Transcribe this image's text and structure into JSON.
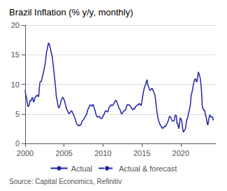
{
  "chart_data": {
    "type": "line",
    "title": "Brazil Inflation (% y/y, monthly)",
    "source": "Source: Capital Economics, Refinitiv",
    "xlim": [
      2000.0,
      2024.5
    ],
    "xticks": [
      2000,
      2005,
      2010,
      2015,
      2020
    ],
    "ylim": [
      0,
      20
    ],
    "yticks": [
      0,
      5,
      10,
      15,
      20
    ],
    "grid": true,
    "legend": "bottom",
    "x": [
      2000.0,
      2000.08,
      2000.17,
      2000.25,
      2000.33,
      2000.42,
      2000.5,
      2000.58,
      2000.67,
      2000.75,
      2000.83,
      2000.92,
      2001.0,
      2001.08,
      2001.17,
      2001.25,
      2001.33,
      2001.42,
      2001.5,
      2001.58,
      2001.67,
      2001.75,
      2001.83,
      2001.92,
      2002.0,
      2002.08,
      2002.17,
      2002.25,
      2002.33,
      2002.42,
      2002.5,
      2002.58,
      2002.67,
      2002.75,
      2002.83,
      2002.92,
      2003.0,
      2003.08,
      2003.17,
      2003.25,
      2003.33,
      2003.42,
      2003.5,
      2003.58,
      2003.67,
      2003.75,
      2003.83,
      2003.92,
      2004.0,
      2004.08,
      2004.17,
      2004.25,
      2004.33,
      2004.42,
      2004.5,
      2004.58,
      2004.67,
      2004.75,
      2004.83,
      2004.92,
      2005.0,
      2005.08,
      2005.17,
      2005.25,
      2005.33,
      2005.42,
      2005.5,
      2005.58,
      2005.67,
      2005.75,
      2005.83,
      2005.92,
      2006.0,
      2006.08,
      2006.17,
      2006.25,
      2006.33,
      2006.42,
      2006.5,
      2006.58,
      2006.67,
      2006.75,
      2006.83,
      2006.92,
      2007.0,
      2007.08,
      2007.17,
      2007.25,
      2007.33,
      2007.42,
      2007.5,
      2007.58,
      2007.67,
      2007.75,
      2007.83,
      2007.92,
      2008.0,
      2008.08,
      2008.17,
      2008.25,
      2008.33,
      2008.42,
      2008.5,
      2008.58,
      2008.67,
      2008.75,
      2008.83,
      2008.92,
      2009.0,
      2009.08,
      2009.17,
      2009.25,
      2009.33,
      2009.42,
      2009.5,
      2009.58,
      2009.67,
      2009.75,
      2009.83,
      2009.92,
      2010.0,
      2010.08,
      2010.17,
      2010.25,
      2010.33,
      2010.42,
      2010.5,
      2010.58,
      2010.67,
      2010.75,
      2010.83,
      2010.92,
      2011.0,
      2011.08,
      2011.17,
      2011.25,
      2011.33,
      2011.42,
      2011.5,
      2011.58,
      2011.67,
      2011.75,
      2011.83,
      2011.92,
      2012.0,
      2012.08,
      2012.17,
      2012.25,
      2012.33,
      2012.42,
      2012.5,
      2012.58,
      2012.67,
      2012.75,
      2012.83,
      2012.92,
      2013.0,
      2013.08,
      2013.17,
      2013.25,
      2013.33,
      2013.42,
      2013.5,
      2013.58,
      2013.67,
      2013.75,
      2013.83,
      2013.92,
      2014.0,
      2014.08,
      2014.17,
      2014.25,
      2014.33,
      2014.42,
      2014.5,
      2014.58,
      2014.67,
      2014.75,
      2014.83,
      2014.92,
      2015.0,
      2015.08,
      2015.17,
      2015.25,
      2015.33,
      2015.42,
      2015.5,
      2015.58,
      2015.67,
      2015.75,
      2015.83,
      2015.92,
      2016.0,
      2016.08,
      2016.17,
      2016.25,
      2016.33,
      2016.42,
      2016.5,
      2016.58,
      2016.67,
      2016.75,
      2016.83,
      2016.92,
      2017.0,
      2017.08,
      2017.17,
      2017.25,
      2017.33,
      2017.42,
      2017.5,
      2017.58,
      2017.67,
      2017.75,
      2017.83,
      2017.92,
      2018.0,
      2018.08,
      2018.17,
      2018.25,
      2018.33,
      2018.42,
      2018.5,
      2018.58,
      2018.67,
      2018.75,
      2018.83,
      2018.92,
      2019.0,
      2019.08,
      2019.17,
      2019.25,
      2019.33,
      2019.42,
      2019.5,
      2019.58,
      2019.67,
      2019.75,
      2019.83,
      2019.92,
      2020.0,
      2020.08,
      2020.17,
      2020.25,
      2020.33,
      2020.42,
      2020.5,
      2020.58,
      2020.67,
      2020.75,
      2020.83,
      2020.92,
      2021.0,
      2021.08,
      2021.17,
      2021.25,
      2021.33,
      2021.42,
      2021.5,
      2021.58,
      2021.67,
      2021.75,
      2021.83,
      2021.92,
      2022.0,
      2022.08,
      2022.17,
      2022.25,
      2022.33,
      2022.42,
      2022.5,
      2022.58,
      2022.67,
      2022.75,
      2022.83,
      2022.92,
      2023.0,
      2023.08,
      2023.17,
      2023.25,
      2023.33,
      2023.42,
      2023.5,
      2023.58,
      2023.67,
      2023.75,
      2023.83,
      2023.92,
      2024.0,
      2024.08,
      2024.17
    ],
    "series": [
      {
        "name": "Actual",
        "color": "#2222aa",
        "line_style": "solid",
        "values": [
          9.0,
          8.2,
          7.8,
          7.0,
          6.4,
          6.2,
          6.5,
          7.0,
          7.3,
          7.2,
          7.5,
          7.8,
          7.5,
          7.0,
          7.2,
          7.8,
          7.8,
          8.0,
          8.1,
          8.2,
          7.9,
          8.0,
          9.5,
          10.4,
          10.5,
          10.5,
          11.0,
          11.5,
          11.8,
          12.5,
          13.0,
          13.5,
          14.5,
          15.5,
          15.8,
          16.5,
          17.0,
          16.8,
          16.5,
          16.0,
          15.5,
          15.0,
          14.5,
          13.5,
          12.5,
          11.5,
          10.5,
          9.3,
          8.0,
          7.5,
          6.8,
          6.2,
          6.0,
          6.2,
          6.6,
          7.0,
          7.4,
          7.6,
          7.8,
          7.7,
          7.4,
          7.1,
          6.6,
          6.2,
          5.8,
          5.6,
          5.4,
          5.1,
          5.0,
          5.2,
          5.3,
          5.5,
          5.5,
          5.2,
          5.0,
          4.8,
          4.5,
          4.2,
          3.8,
          3.5,
          3.2,
          3.1,
          3.0,
          3.1,
          3.0,
          3.1,
          3.2,
          3.5,
          3.8,
          3.9,
          4.0,
          4.2,
          4.4,
          4.6,
          4.8,
          5.0,
          5.5,
          5.8,
          6.0,
          6.3,
          6.5,
          6.5,
          6.4,
          6.3,
          6.5,
          6.6,
          6.2,
          5.8,
          5.5,
          5.0,
          4.7,
          4.5,
          4.4,
          4.5,
          4.6,
          4.5,
          4.3,
          4.2,
          4.2,
          4.3,
          4.6,
          4.8,
          5.0,
          5.3,
          5.5,
          5.5,
          5.4,
          5.3,
          5.5,
          6.0,
          6.2,
          6.3,
          6.5,
          6.5,
          6.4,
          6.5,
          6.5,
          6.8,
          7.0,
          7.2,
          7.3,
          7.1,
          6.8,
          6.5,
          6.2,
          5.9,
          5.8,
          5.5,
          5.1,
          5.0,
          5.1,
          5.3,
          5.5,
          5.5,
          5.6,
          5.7,
          6.2,
          6.4,
          6.6,
          6.5,
          6.5,
          6.5,
          6.3,
          6.2,
          6.0,
          5.8,
          5.7,
          5.9,
          5.8,
          5.9,
          6.2,
          6.3,
          6.4,
          6.5,
          6.5,
          6.5,
          6.8,
          6.6,
          6.6,
          6.4,
          7.1,
          7.8,
          8.5,
          9.0,
          9.5,
          9.8,
          10.0,
          10.5,
          10.8,
          10.0,
          9.6,
          9.4,
          9.0,
          9.0,
          9.1,
          9.3,
          9.3,
          9.0,
          8.8,
          8.5,
          8.2,
          7.5,
          6.5,
          5.5,
          4.8,
          4.2,
          3.8,
          3.5,
          3.2,
          3.0,
          2.8,
          2.7,
          2.5,
          2.7,
          2.8,
          2.9,
          2.8,
          3.0,
          3.2,
          3.5,
          3.6,
          4.0,
          4.4,
          4.6,
          4.5,
          4.2,
          4.0,
          3.8,
          3.8,
          3.8,
          3.9,
          4.6,
          4.8,
          4.7,
          3.4,
          3.4,
          2.9,
          2.5,
          3.2,
          4.3,
          4.2,
          4.0,
          3.3,
          2.4,
          1.9,
          2.1,
          2.3,
          2.4,
          3.1,
          3.9,
          4.2,
          4.5,
          5.2,
          5.5,
          6.1,
          6.8,
          8.1,
          8.6,
          9.0,
          9.7,
          10.3,
          10.7,
          10.9,
          10.9,
          10.4,
          10.5,
          11.3,
          12.1,
          11.8,
          11.4,
          11.0,
          10.1,
          8.7,
          6.5,
          5.9,
          5.8,
          5.5,
          5.6,
          4.7,
          4.6,
          3.9,
          3.2,
          3.2,
          4.0,
          4.6,
          4.8,
          4.6,
          4.4,
          4.5,
          null,
          null
        ]
      },
      {
        "name": "Actual & forecast",
        "color": "#2222aa",
        "line_style": "dashed",
        "values": [
          null,
          null,
          null,
          null,
          null,
          null,
          null,
          null,
          null,
          null,
          null,
          null,
          null,
          null,
          null,
          null,
          null,
          null,
          null,
          null,
          null,
          null,
          null,
          null,
          null,
          null,
          null,
          null,
          null,
          null,
          null,
          null,
          null,
          null,
          null,
          null,
          null,
          null,
          null,
          null,
          null,
          null,
          null,
          null,
          null,
          null,
          null,
          null,
          null,
          null,
          null,
          null,
          null,
          null,
          null,
          null,
          null,
          null,
          null,
          null,
          null,
          null,
          null,
          null,
          null,
          null,
          null,
          null,
          null,
          null,
          null,
          null,
          null,
          null,
          null,
          null,
          null,
          null,
          null,
          null,
          null,
          null,
          null,
          null,
          null,
          null,
          null,
          null,
          null,
          null,
          null,
          null,
          null,
          null,
          null,
          null,
          null,
          null,
          null,
          null,
          null,
          null,
          null,
          null,
          null,
          null,
          null,
          null,
          null,
          null,
          null,
          null,
          null,
          null,
          null,
          null,
          null,
          null,
          null,
          null,
          null,
          null,
          null,
          null,
          null,
          null,
          null,
          null,
          null,
          null,
          null,
          null,
          null,
          null,
          null,
          null,
          null,
          null,
          null,
          null,
          null,
          null,
          null,
          null,
          null,
          null,
          null,
          null,
          null,
          null,
          null,
          null,
          null,
          null,
          null,
          null,
          null,
          null,
          null,
          null,
          null,
          null,
          null,
          null,
          null,
          null,
          null,
          null,
          null,
          null,
          null,
          null,
          null,
          null,
          null,
          null,
          null,
          null,
          null,
          null,
          null,
          null,
          null,
          null,
          null,
          null,
          null,
          null,
          null,
          null,
          null,
          null,
          null,
          null,
          null,
          null,
          null,
          null,
          null,
          null,
          null,
          null,
          null,
          null,
          null,
          null,
          null,
          null,
          null,
          null,
          null,
          null,
          null,
          null,
          null,
          null,
          null,
          null,
          null,
          null,
          null,
          null,
          null,
          null,
          null,
          null,
          null,
          null,
          null,
          null,
          null,
          null,
          null,
          null,
          null,
          null,
          null,
          null,
          null,
          null,
          null,
          null,
          null,
          null,
          null,
          null,
          null,
          null,
          null,
          null,
          null,
          null,
          null,
          null,
          null,
          null,
          null,
          null,
          null,
          null,
          null,
          null,
          null,
          null,
          null,
          null,
          null,
          null,
          null,
          null,
          null,
          null,
          null,
          null,
          null,
          null,
          null,
          null,
          null,
          null,
          null,
          null,
          null,
          null,
          null,
          null,
          null,
          null,
          4.5,
          4.5,
          3.9
        ]
      }
    ]
  }
}
